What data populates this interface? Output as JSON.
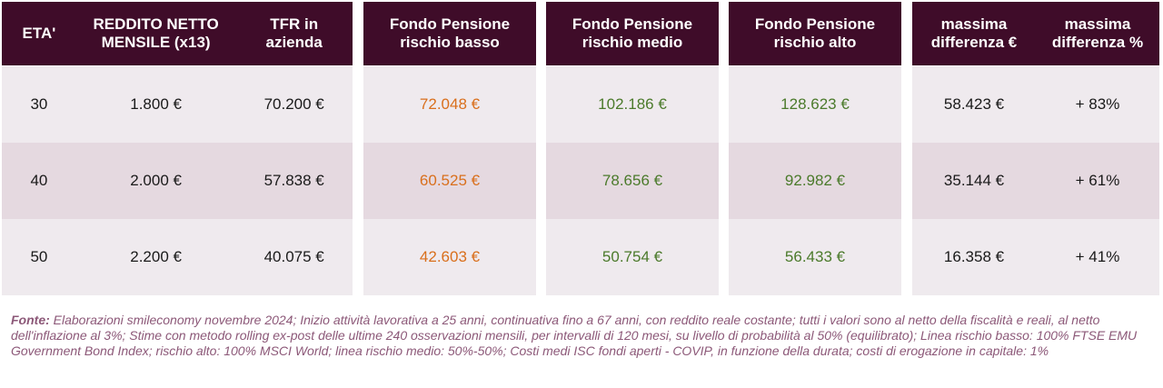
{
  "headers": {
    "eta": "ETA'",
    "reddito": "REDDITO NETTO\nMENSILE (x13)",
    "tfr": "TFR in\nazienda",
    "fondo_basso": "Fondo Pensione\nrischio basso",
    "fondo_medio": "Fondo Pensione\nrischio medio",
    "fondo_alto": "Fondo Pensione\nrischio alto",
    "diff_euro": "massima\ndifferenza €",
    "diff_perc": "massima\ndifferenza %"
  },
  "rows": [
    {
      "eta": "30",
      "reddito": "1.800 €",
      "tfr": "70.200 €",
      "fondo_basso": "72.048 €",
      "fondo_medio": "102.186 €",
      "fondo_alto": "128.623 €",
      "diff_euro": "58.423 €",
      "diff_perc": "+ 83%"
    },
    {
      "eta": "40",
      "reddito": "2.000 €",
      "tfr": "57.838 €",
      "fondo_basso": "60.525 €",
      "fondo_medio": "78.656 €",
      "fondo_alto": "92.982 €",
      "diff_euro": "35.144 €",
      "diff_perc": "+ 61%"
    },
    {
      "eta": "50",
      "reddito": "2.200 €",
      "tfr": "40.075 €",
      "fondo_basso": "42.603 €",
      "fondo_medio": "50.754 €",
      "fondo_alto": "56.433 €",
      "diff_euro": "16.358 €",
      "diff_perc": "+ 41%"
    }
  ],
  "source": {
    "label": "Fonte:",
    "text": " Elaborazioni smileconomy novembre 2024; Inizio attività lavorativa a 25 anni, continuativa fino a 67 anni, con reddito reale costante; tutti i valori sono al netto della fiscalità e reali, al netto dell'inflazione al 3%; Stime con metodo rolling ex-post delle ultime 240 osservazioni mensili, per intervalli di 120 mesi, su livello di probabilità al 50% (equilibrato); Linea rischio basso: 100% FTSE EMU Government Bond Index; rischio alto: 100% MSCI World; linea rischio medio: 50%-50%; Costi medi ISC fondi aperti - COVIP, in funzione della durata; costi di erogazione in capitale: 1%"
  },
  "colors": {
    "header_bg": "#3f0c29",
    "row_light": "#efeaee",
    "row_dark": "#e5d9e0",
    "low_risk_text": "#d96f1c",
    "fund_text": "#4b7a2b",
    "source_text": "#8c5878"
  }
}
